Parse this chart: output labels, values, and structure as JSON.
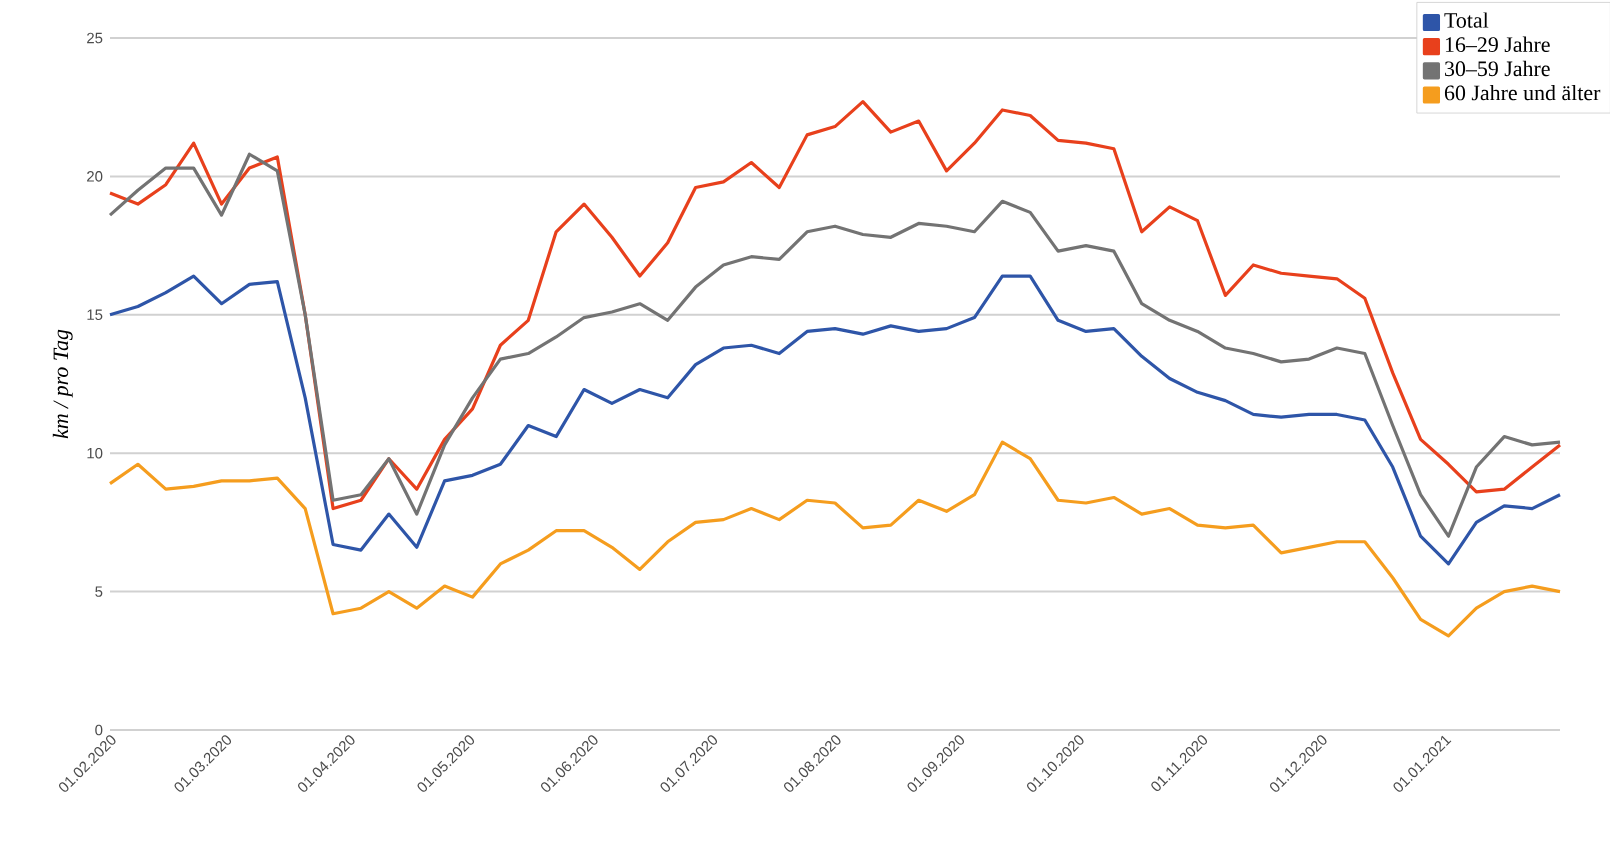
{
  "chart_data": {
    "type": "line",
    "ylabel": "km / pro Tag",
    "x": [
      "2020-02-01",
      "2020-02-08",
      "2020-02-15",
      "2020-02-22",
      "2020-02-29",
      "2020-03-07",
      "2020-03-14",
      "2020-03-21",
      "2020-03-28",
      "2020-04-04",
      "2020-04-11",
      "2020-04-18",
      "2020-04-25",
      "2020-05-02",
      "2020-05-09",
      "2020-05-16",
      "2020-05-23",
      "2020-05-30",
      "2020-06-06",
      "2020-06-13",
      "2020-06-20",
      "2020-06-27",
      "2020-07-04",
      "2020-07-11",
      "2020-07-18",
      "2020-07-25",
      "2020-08-01",
      "2020-08-08",
      "2020-08-15",
      "2020-08-22",
      "2020-08-29",
      "2020-09-05",
      "2020-09-12",
      "2020-09-19",
      "2020-09-26",
      "2020-10-03",
      "2020-10-10",
      "2020-10-17",
      "2020-10-24",
      "2020-10-31",
      "2020-11-07",
      "2020-11-14",
      "2020-11-21",
      "2020-11-28",
      "2020-12-05",
      "2020-12-12",
      "2020-12-19",
      "2020-12-26",
      "2021-01-02",
      "2021-01-09",
      "2021-01-16",
      "2021-01-23",
      "2021-01-30"
    ],
    "series": [
      {
        "name": "Total",
        "color": "#2e55a8",
        "values": [
          15.0,
          15.3,
          15.8,
          16.4,
          15.4,
          16.1,
          16.2,
          12.0,
          6.7,
          6.5,
          7.8,
          6.6,
          9.0,
          9.2,
          9.6,
          11.0,
          10.6,
          12.3,
          11.8,
          12.3,
          12.0,
          13.2,
          13.8,
          13.9,
          13.6,
          14.4,
          14.5,
          14.3,
          14.6,
          14.4,
          14.5,
          14.9,
          16.4,
          16.4,
          14.8,
          14.4,
          14.5,
          13.5,
          12.7,
          12.2,
          11.9,
          11.4,
          11.3,
          11.4,
          11.4,
          11.2,
          9.5,
          7.0,
          6.0,
          7.5,
          8.1,
          8.0,
          8.5
        ]
      },
      {
        "name": "16–29 Jahre",
        "color": "#e8401c",
        "values": [
          19.4,
          19.0,
          19.7,
          21.2,
          19.0,
          20.3,
          20.7,
          15.0,
          8.0,
          8.3,
          9.8,
          8.7,
          10.5,
          11.6,
          13.9,
          14.8,
          18.0,
          19.0,
          17.8,
          16.4,
          17.6,
          19.6,
          19.8,
          20.5,
          19.6,
          21.5,
          21.8,
          22.7,
          21.6,
          22.0,
          20.2,
          21.2,
          22.4,
          22.2,
          21.3,
          21.2,
          21.0,
          18.0,
          18.9,
          18.4,
          15.7,
          16.8,
          16.5,
          16.4,
          16.3,
          15.6,
          12.9,
          10.5,
          9.6,
          8.6,
          8.7,
          9.5,
          10.3
        ]
      },
      {
        "name": "30–59 Jahre",
        "color": "#737373",
        "values": [
          18.6,
          19.5,
          20.3,
          20.3,
          18.6,
          20.8,
          20.2,
          15.0,
          8.3,
          8.5,
          9.8,
          7.8,
          10.3,
          12.0,
          13.4,
          13.6,
          14.2,
          14.9,
          15.1,
          15.4,
          14.8,
          16.0,
          16.8,
          17.1,
          17.0,
          18.0,
          18.2,
          17.9,
          17.8,
          18.3,
          18.2,
          18.0,
          19.1,
          18.7,
          17.3,
          17.5,
          17.3,
          15.4,
          14.8,
          14.4,
          13.8,
          13.6,
          13.3,
          13.4,
          13.8,
          13.6,
          11.0,
          8.5,
          7.0,
          9.5,
          10.6,
          10.3,
          10.4
        ]
      },
      {
        "name": "60 Jahre und älter",
        "color": "#f59d1e",
        "values": [
          8.9,
          9.6,
          8.7,
          8.8,
          9.0,
          9.0,
          9.1,
          8.0,
          4.2,
          4.4,
          5.0,
          4.4,
          5.2,
          4.8,
          6.0,
          6.5,
          7.2,
          7.2,
          6.6,
          5.8,
          6.8,
          7.5,
          7.6,
          8.0,
          7.6,
          8.3,
          8.2,
          7.3,
          7.4,
          8.3,
          7.9,
          8.5,
          10.4,
          9.8,
          8.3,
          8.2,
          8.4,
          7.8,
          8.0,
          7.4,
          7.3,
          7.4,
          6.4,
          6.6,
          6.8,
          6.8,
          5.5,
          4.0,
          3.4,
          4.4,
          5.0,
          5.2,
          5.0
        ]
      }
    ],
    "xlim": [
      "2020-02-01",
      "2021-01-30"
    ],
    "xticks": [
      {
        "value": "2020-02-01",
        "label": "01.02.2020"
      },
      {
        "value": "2020-03-01",
        "label": "01.03.2020"
      },
      {
        "value": "2020-04-01",
        "label": "01.04.2020"
      },
      {
        "value": "2020-05-01",
        "label": "01.05.2020"
      },
      {
        "value": "2020-06-01",
        "label": "01.06.2020"
      },
      {
        "value": "2020-07-01",
        "label": "01.07.2020"
      },
      {
        "value": "2020-08-01",
        "label": "01.08.2020"
      },
      {
        "value": "2020-09-01",
        "label": "01.09.2020"
      },
      {
        "value": "2020-10-01",
        "label": "01.10.2020"
      },
      {
        "value": "2020-11-01",
        "label": "01.11.2020"
      },
      {
        "value": "2020-12-01",
        "label": "01.12.2020"
      },
      {
        "value": "2021-01-01",
        "label": "01.01.2021"
      }
    ],
    "ylim": [
      0,
      25
    ],
    "yticks": [
      0,
      5,
      10,
      15,
      20,
      25
    ],
    "grid": "y",
    "legend": "top right",
    "marker": "none",
    "line_style": "solid"
  }
}
